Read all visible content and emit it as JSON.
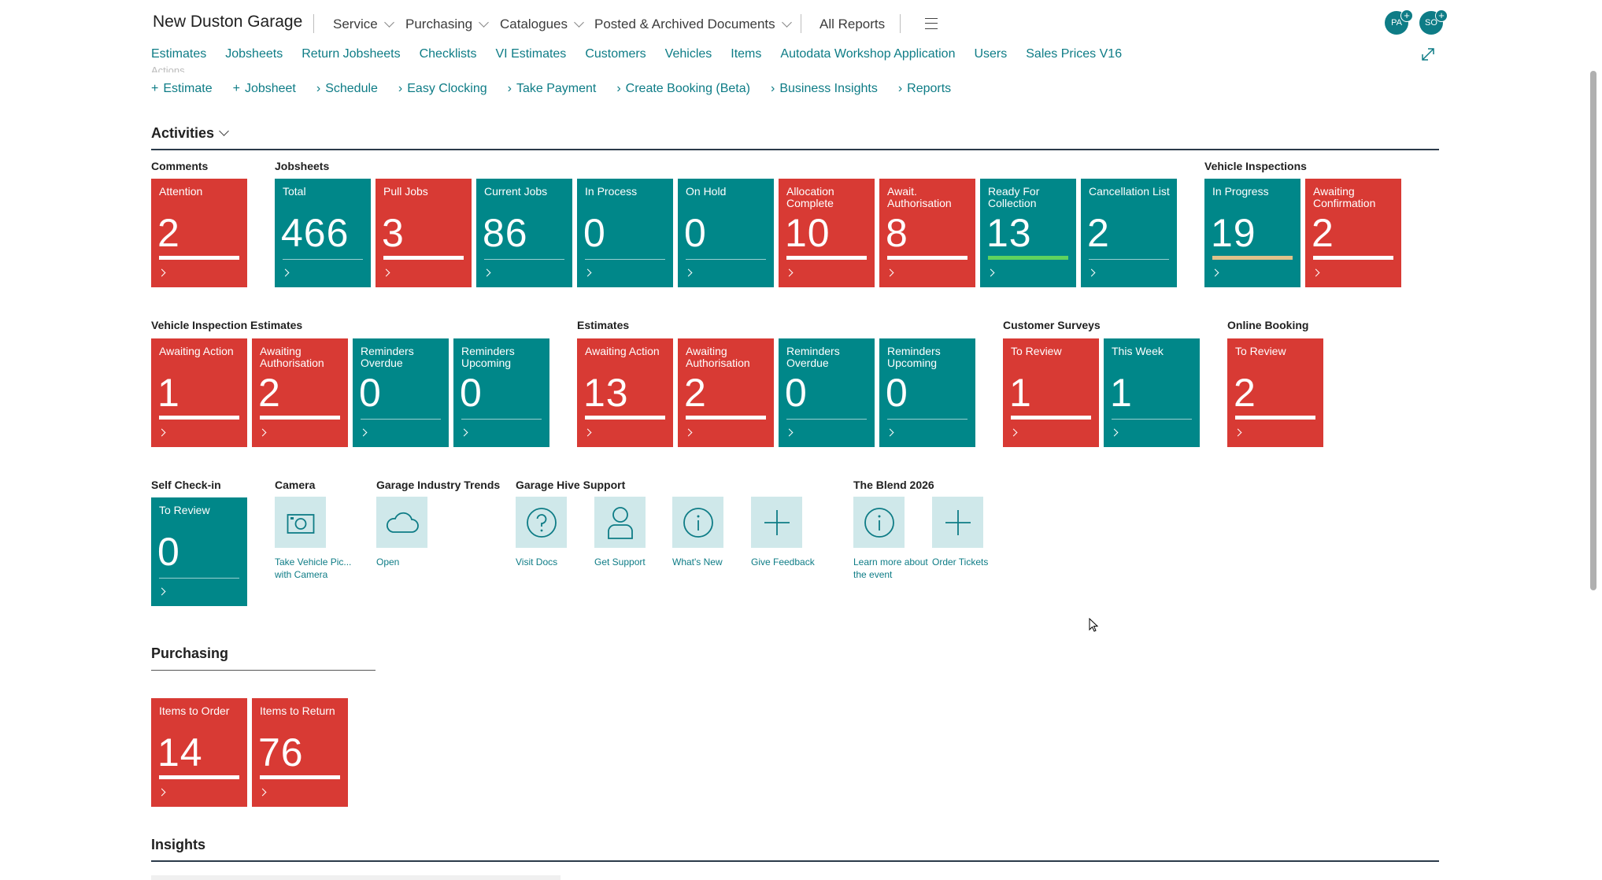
{
  "header": {
    "app_title": "New Duston Garage",
    "menus": [
      {
        "label": "Service",
        "has_dropdown": true
      },
      {
        "label": "Purchasing",
        "has_dropdown": true
      },
      {
        "label": "Catalogues",
        "has_dropdown": true
      },
      {
        "label": "Posted & Archived Documents",
        "has_dropdown": true
      }
    ],
    "all_reports": "All Reports",
    "avatars": [
      {
        "initials": "PA"
      },
      {
        "initials": "SO"
      }
    ]
  },
  "links": [
    "Estimates",
    "Jobsheets",
    "Return Jobsheets",
    "Checklists",
    "VI Estimates",
    "Customers",
    "Vehicles",
    "Items",
    "Autodata Workshop Application",
    "Users",
    "Sales Prices V16"
  ],
  "actions_heading": "Actions",
  "actions": [
    {
      "symbol": "+",
      "label": "Estimate"
    },
    {
      "symbol": "+",
      "label": "Jobsheet"
    },
    {
      "symbol": "›",
      "label": "Schedule"
    },
    {
      "symbol": "›",
      "label": "Easy Clocking"
    },
    {
      "symbol": "›",
      "label": "Take Payment"
    },
    {
      "symbol": "›",
      "label": "Create Booking (Beta)"
    },
    {
      "symbol": "›",
      "label": "Business Insights"
    },
    {
      "symbol": "›",
      "label": "Reports"
    }
  ],
  "sections": {
    "activities": "Activities",
    "purchasing": "Purchasing",
    "insights": "Insights"
  },
  "groups": {
    "comments": {
      "label": "Comments",
      "tiles": [
        {
          "label": "Attention",
          "value": "2",
          "color": "red",
          "bar": "#ffffff"
        }
      ]
    },
    "jobsheets": {
      "label": "Jobsheets",
      "tiles": [
        {
          "label": "Total",
          "value": "466",
          "color": "teal",
          "bar": "line"
        },
        {
          "label": "Pull Jobs",
          "value": "3",
          "color": "red",
          "bar": "#ffffff"
        },
        {
          "label": "Current Jobs",
          "value": "86",
          "color": "teal",
          "bar": "line"
        },
        {
          "label": "In Process",
          "value": "0",
          "color": "teal",
          "bar": "line"
        },
        {
          "label": "On Hold",
          "value": "0",
          "color": "teal",
          "bar": "line"
        },
        {
          "label": "Allocation Complete",
          "value": "10",
          "color": "red",
          "bar": "#ffffff"
        },
        {
          "label": "Await. Authorisation",
          "value": "8",
          "color": "red",
          "bar": "#ffffff"
        },
        {
          "label": "Ready For Collection",
          "value": "13",
          "color": "teal",
          "bar": "#5ed35e"
        },
        {
          "label": "Cancellation List",
          "value": "2",
          "color": "teal",
          "bar": "line"
        }
      ]
    },
    "vehicle_inspections": {
      "label": "Vehicle Inspections",
      "tiles": [
        {
          "label": "In Progress",
          "value": "19",
          "color": "teal",
          "bar": "#e0c28a"
        },
        {
          "label": "Awaiting Confirmation",
          "value": "2",
          "color": "red",
          "bar": "#ffffff"
        }
      ]
    },
    "vi_estimates": {
      "label": "Vehicle Inspection Estimates",
      "tiles": [
        {
          "label": "Awaiting Action",
          "value": "1",
          "color": "red",
          "bar": "#ffffff"
        },
        {
          "label": "Awaiting Authorisation",
          "value": "2",
          "color": "red",
          "bar": "#ffffff"
        },
        {
          "label": "Reminders Overdue",
          "value": "0",
          "color": "teal",
          "bar": "line"
        },
        {
          "label": "Reminders Upcoming",
          "value": "0",
          "color": "teal",
          "bar": "line"
        }
      ]
    },
    "estimates": {
      "label": "Estimates",
      "tiles": [
        {
          "label": "Awaiting Action",
          "value": "13",
          "color": "red",
          "bar": "#ffffff"
        },
        {
          "label": "Awaiting Authorisation",
          "value": "2",
          "color": "red",
          "bar": "#ffffff"
        },
        {
          "label": "Reminders Overdue",
          "value": "0",
          "color": "teal",
          "bar": "line"
        },
        {
          "label": "Reminders Upcoming",
          "value": "0",
          "color": "teal",
          "bar": "line"
        }
      ]
    },
    "customer_surveys": {
      "label": "Customer Surveys",
      "tiles": [
        {
          "label": "To Review",
          "value": "1",
          "color": "red",
          "bar": "#ffffff"
        },
        {
          "label": "This Week",
          "value": "1",
          "color": "teal",
          "bar": "line"
        }
      ]
    },
    "online_booking": {
      "label": "Online Booking",
      "tiles": [
        {
          "label": "To Review",
          "value": "2",
          "color": "red",
          "bar": "#ffffff"
        }
      ]
    },
    "self_checkin": {
      "label": "Self Check-in",
      "tiles": [
        {
          "label": "To Review",
          "value": "0",
          "color": "teal",
          "bar": "line"
        }
      ]
    },
    "purchasing": {
      "tiles": [
        {
          "label": "Items to Order",
          "value": "14",
          "color": "red",
          "bar": "#ffffff"
        },
        {
          "label": "Items to Return",
          "value": "76",
          "color": "red",
          "bar": "#ffffff"
        }
      ]
    }
  },
  "icon_groups": {
    "camera": {
      "label": "Camera",
      "items": [
        {
          "icon": "camera-icon",
          "caption": "Take Vehicle Pic... with Camera"
        }
      ]
    },
    "trends": {
      "label": "Garage Industry Trends",
      "items": [
        {
          "icon": "cloud-icon",
          "caption": "Open"
        }
      ]
    },
    "support": {
      "label": "Garage Hive Support",
      "items": [
        {
          "icon": "question-icon",
          "caption": "Visit Docs"
        },
        {
          "icon": "person-icon",
          "caption": "Get Support"
        },
        {
          "icon": "info-icon",
          "caption": "What's New"
        },
        {
          "icon": "plus-icon",
          "caption": "Give Feedback"
        }
      ]
    },
    "blend": {
      "label": "The Blend 2026",
      "items": [
        {
          "icon": "info-icon",
          "caption": "Learn more about the event"
        },
        {
          "icon": "plus-icon",
          "caption": "Order Tickets"
        }
      ]
    }
  },
  "colors": {
    "red": "#d83a34",
    "teal": "#008789",
    "accent": "#0e7c86",
    "icon_bg": "#cfe8ea"
  }
}
